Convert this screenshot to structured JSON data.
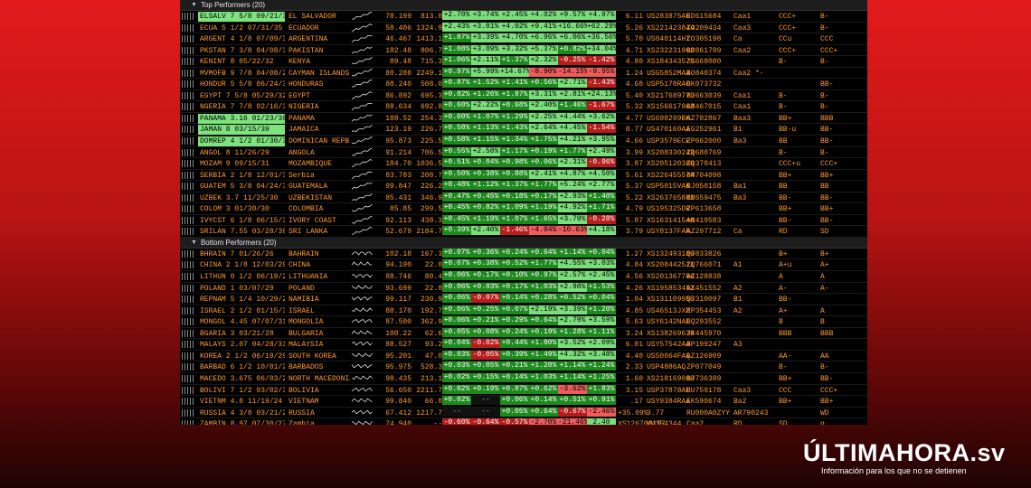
{
  "sections": [
    {
      "title": "Top Performers (20)",
      "rows": [
        [
          "ELSALV 7 5/8 09/21/34",
          "EL SALVADOR",
          "up",
          "78.199",
          "813.0",
          "+2.70%",
          "+3.74%",
          "+2.45%",
          "+4.02%",
          "+9.57%",
          "+4.97%",
          "6.11",
          "US283875AH",
          "ED615684",
          "Caa1",
          "CCC+",
          "B-",
          "g"
        ],
        [
          "ECUA 5 1/2 07/31/35",
          "ECUADOR",
          "up",
          "58.406",
          "1324.9",
          "+2.43%",
          "+3.01%",
          "+4.02%",
          "+9.41%",
          "+16.66%",
          "+62.29%",
          "5.26",
          "XS221423844",
          "ZO209434",
          "Caa3",
          "CCC+",
          "B-",
          ""
        ],
        [
          "ARGENT 4 1/8 07/09/35",
          "ARGENTINA",
          "up",
          "46.467",
          "1413.1",
          "+1.87%",
          "+3.39%",
          "+4.70%",
          "+6.96%",
          "+6.06%",
          "+36.56%",
          "5.70",
          "US040114HT",
          "ZO305198",
          "Ca",
          "CCu",
          "CCC",
          ""
        ],
        [
          "PKSTAN 7 3/8 04/08/31",
          "PAKISTAN",
          "up",
          "182.48",
          "806.7",
          "+1.08%",
          "+3.09%",
          "+3.32%",
          "+5.37%",
          "+0.82%",
          "+34.04%",
          "4.71",
          "XS232231962",
          "BO861799",
          "Caa2",
          "CCC+",
          "CCC+",
          ""
        ],
        [
          "KENINT 8 05/22/32",
          "KENYA",
          "up",
          "89.48",
          "715.3",
          "+1.06%",
          "+2.11%",
          "+1.37%",
          "+2.32%",
          "-0.25%",
          "-1.42%",
          "4.80",
          "XS184343576",
          "ZS668080",
          "",
          "B-",
          "B-",
          ""
        ],
        [
          "MVMOFB 9 7/8 04/08/26",
          "CAYMAN ISLANDS",
          "up",
          "80.288",
          "2249.1",
          "+0.97%",
          "+5.99%",
          "+14.67%",
          "-8.90%",
          "-14.15%",
          "-9.95%",
          "1.24",
          "USG5852MAA",
          "BO840374",
          "Caa2 *-",
          "",
          "",
          ""
        ],
        [
          "HONDUR 5 5/8 06/24/30",
          "HONDURAS",
          "up",
          "88.240",
          "508.0",
          "+0.87%",
          "+1.52%",
          "+1.41%",
          "+0.56%",
          "+2.71%",
          "-1.43%",
          "4.68",
          "USP5178RAC",
          "BK073732",
          "",
          "",
          "BB-",
          ""
        ],
        [
          "EGYPT 7 5/8 05/29/32",
          "EGYPT",
          "up",
          "86.892",
          "695.3",
          "+0.82%",
          "+1.26%",
          "+1.87%",
          "+3.31%",
          "+2.81%",
          "+24.13%",
          "5.40",
          "XS217689775",
          "BJ663039",
          "Caa1",
          "B-",
          "B-",
          ""
        ],
        [
          "NGERIA 7 7/8 02/16/32",
          "NIGERIA",
          "up",
          "88.634",
          "692.8",
          "+0.60%",
          "+2.22%",
          "+0.68%",
          "+2.40%",
          "+1.46%",
          "-1.67%",
          "5.32",
          "XS156617903",
          "AM467015",
          "Caa1",
          "B-",
          "B-",
          ""
        ],
        [
          "PANAMA 3.16 01/23/30",
          "PANAMA",
          "up",
          "188.52",
          "254.3",
          "+0.60%",
          "+1.07%",
          "+1.29%",
          "+2.25%",
          "+4.44%",
          "+3.62%",
          "4.77",
          "US698299BK",
          "AZ702867",
          "Baa3",
          "BB+",
          "BBB",
          "g"
        ],
        [
          "JAMAN 8 03/15/39",
          "JAMAICA",
          "up",
          "123.19",
          "226.7",
          "+0.58%",
          "+1.13%",
          "+1.43%",
          "+2.64%",
          "+4.45%",
          "-1.54%",
          "8.77",
          "US470160AA",
          "EG252961",
          "B1",
          "BB-u",
          "BB-",
          "g"
        ],
        [
          "DOMREP 4 1/2 01/30/30",
          "DOMINICAN REPB.",
          "up",
          "95.873",
          "225.5",
          "+0.58%",
          "+1.15%",
          "+1.34%",
          "+1.75%",
          "+4.21%",
          "+3.95%",
          "4.66",
          "USP3579ECE",
          "ZP662000",
          "Ba3",
          "BB",
          "BB-",
          "g"
        ],
        [
          "ANGOL 8 11/26/29",
          "ANGOLA",
          "up",
          "91.214",
          "706.5",
          "+0.55%",
          "+2.58%",
          "+1.17%",
          "+0.19%",
          "+1.77%",
          "+2.49%",
          "3.99",
          "XS208330243",
          "ZQ680769",
          "",
          "B-",
          "B-",
          ""
        ],
        [
          "MOZAM 9 09/15/31",
          "MOZAMBIQUE",
          "up",
          "184.70",
          "1036.5",
          "+0.51%",
          "+0.04%",
          "+0.98%",
          "+0.06%",
          "+2.31%",
          "-0.96%",
          "3.87",
          "XS205120386",
          "ZQ378413",
          "",
          "CCC+u",
          "CCC+",
          ""
        ],
        [
          "SERBIA 2 1/8 12/01/30",
          "Serbia",
          "up",
          "83.783",
          "208.7",
          "+0.50%",
          "+0.38%",
          "+0.88%",
          "+2.41%",
          "+4.87%",
          "+4.50%",
          "5.61",
          "XS226455574",
          "BM704098",
          "",
          "BB+",
          "BB+",
          ""
        ],
        [
          "GUATEM 5 3/8 04/24/32",
          "GUATEMALA",
          "up",
          "99.847",
          "226.2",
          "+0.48%",
          "+1.12%",
          "+1.37%",
          "+1.77%",
          "+5.24%",
          "+2.77%",
          "5.37",
          "USP5015VAK",
          "BJ050158",
          "Ba1",
          "BB",
          "BB",
          ""
        ],
        [
          "UZBEK 3.7 11/25/30",
          "UZBEKISTAN",
          "up",
          "85.431",
          "346.9",
          "+0.47%",
          "+0.45%",
          "+0.18%",
          "+0.17%",
          "+2.93%",
          "+1.40%",
          "5.22",
          "XS263765881",
          "BM659475",
          "Ba3",
          "BB-",
          "BB-",
          ""
        ],
        [
          "COLOM 3 01/30/30",
          "COLOMBIA",
          "up",
          "85.85",
          "299.5",
          "+0.45%",
          "+0.82%",
          "+1.09%",
          "+1.19%",
          "+4.92%",
          "+1.71%",
          "4.79",
          "US195325DR",
          "ZP613658",
          "",
          "BB+",
          "BB+",
          ""
        ],
        [
          "IVYCST 6 1/8 06/15/33",
          "IVORY COAST",
          "up",
          "92.113",
          "438.3",
          "+0.45%",
          "+1.19%",
          "+1.07%",
          "+1.65%",
          "+3.79%",
          "-0.28%",
          "5.87",
          "XS163141540",
          "AN419583",
          "",
          "BB-",
          "BB-",
          ""
        ],
        [
          "SRILAN 7.55 03/28/30",
          "SRI LANKA",
          "up",
          "52.679",
          "2184.7",
          "+0.39%",
          "+2.40%",
          "-1.46%",
          "-4.94%",
          "-10.63%",
          "+4.18%",
          "3.79",
          "USY8137FAR",
          "AZ297712",
          "Ca",
          "RD",
          "SD",
          ""
        ]
      ]
    },
    {
      "title": "Bottom Performers (20)",
      "rows": [
        [
          "BHRAIN 7 01/26/26",
          "BAHRAIN",
          "flat",
          "102.18",
          "167.3",
          "+0.07%",
          "+0.36%",
          "+0.24%",
          "+0.64%",
          "+1.14%",
          "+0.04%",
          "1.27",
          "XS132493189",
          "QJ833826",
          "",
          "B+",
          "B+",
          ""
        ],
        [
          "CHINA 2 1/8 12/03/29",
          "CHINA",
          "flat",
          "94.190",
          "22.0",
          "+0.07%",
          "+0.38%",
          "+0.52%",
          "+1.77%",
          "+4.55%",
          "+3.03%",
          "4.84",
          "XS208442511",
          "ZQ766071",
          "A1",
          "A+u",
          "A+",
          ""
        ],
        [
          "LITHUN 0 1/2 06/19/29",
          "LITHUANIA",
          "flat",
          "88.746",
          "80.4",
          "+0.06%",
          "+0.17%",
          "+0.10%",
          "+0.97%",
          "+2.57%",
          "+2.45%",
          "4.56",
          "XS201367786",
          "AZ128838",
          "",
          "A",
          "A",
          ""
        ],
        [
          "POLAND 1 03/07/29",
          "POLAND",
          "flat",
          "93.699",
          "22.8",
          "+0.06%",
          "+0.03%",
          "+0.17%",
          "+1.03%",
          "+2.98%",
          "+1.53%",
          "4.26",
          "XS195853452",
          "AX451552",
          "A2",
          "A-",
          "A-",
          ""
        ],
        [
          "REPNAM 5 1/4 10/29/25",
          "NAMIBIA",
          "flat",
          "99.117",
          "230.9",
          "+0.06%",
          "-0.07%",
          "+0.14%",
          "+0.28%",
          "+0.52%",
          "+0.04%",
          "1.04",
          "XS131109955",
          "QJ310097",
          "B1",
          "BB-",
          "",
          ""
        ],
        [
          "ISRAEL 2 1/2 01/15/30",
          "ISRAEL",
          "flat",
          "88.170",
          "192.7",
          "+0.06%",
          "+0.25%",
          "+0.07%",
          "+2.19%",
          "+3.39%",
          "+1.20%",
          "4.85",
          "US46513JXM",
          "ZP354453",
          "A2",
          "A+",
          "A",
          ""
        ],
        [
          "MONGOL 4.45 07/07/31",
          "MONGOLIA",
          "flat",
          "87.500",
          "362.9",
          "+0.06%",
          "+0.21%",
          "+0.29%",
          "+0.64%",
          "+2.79%",
          "+3.59%",
          "5.63",
          "USY6142NAE",
          "BQ293552",
          "",
          "B",
          "B",
          ""
        ],
        [
          "BGARIA 3 03/21/28",
          "BULGARIA",
          "flat",
          "100.22",
          "62.6",
          "+0.05%",
          "+0.08%",
          "+0.24%",
          "+0.19%",
          "+1.28%",
          "+1.11%",
          "3.24",
          "XS138269639",
          "JK445970",
          "",
          "BBB",
          "BBB",
          ""
        ],
        [
          "MALAYS 2.07 04/28/31",
          "MALAYSIA",
          "flat",
          "88.527",
          "93.2",
          "+0.04%",
          "-0.02%",
          "+0.44%",
          "+1.80%",
          "+3.52%",
          "+2.09%",
          "6.01",
          "USY57542AA",
          "BP199247",
          "A3",
          "",
          "",
          ""
        ],
        [
          "KOREA 2 1/2 06/19/29",
          "SOUTH KOREA",
          "flat",
          "95.201",
          "47.0",
          "+0.03%",
          "-0.05%",
          "+0.39%",
          "+1.49%",
          "+4.32%",
          "+3.48%",
          "4.40",
          "US50064FAQ",
          "AZ126909",
          "",
          "AA-",
          "AA",
          ""
        ],
        [
          "BARBAD 6 1/2 10/01/29",
          "BARBADOS",
          "flat",
          "95.975",
          "528.3",
          "+0.03%",
          "+0.05%",
          "+0.21%",
          "+1.20%",
          "+1.14%",
          "+1.24%",
          "2.33",
          "USP4886AQ",
          "ZP077049",
          "",
          "B-",
          "B-",
          ""
        ],
        [
          "MACEDO 3.675 06/03/26",
          "NORTH MACEDONIA",
          "flat",
          "98.435",
          "213.1",
          "+0.02%",
          "+0.15%",
          "+0.14%",
          "+1.03%",
          "+1.14%",
          "+1.25%",
          "1.60",
          "XS218169088",
          "BJ736389",
          "",
          "BB+",
          "BB-",
          ""
        ],
        [
          "BOLIVI 7 1/2 03/02/30",
          "BOLIVIA",
          "flat",
          "56.650",
          "2211.7",
          "+0.02%",
          "+0.19%",
          "+0.87%",
          "+0.62%",
          "-3.62%",
          "+1.83%",
          "3.15",
          "USP37878AE",
          "BU759178",
          "Caa3",
          "CCC",
          "CCC+",
          ""
        ],
        [
          "VIETNM 4.8 11/19/24",
          "VIETNAM",
          "flat",
          "99.840",
          "66.8",
          "+0.02%",
          "--",
          "+0.06%",
          "+0.14%",
          "+0.51%",
          "+0.91%",
          ".17",
          "USY9384RAA",
          "EK590674",
          "Ba2",
          "BB+",
          "BB+",
          ""
        ],
        [
          "RUSSIA 4 3/8 03/21/29",
          "RUSSIA",
          "flat",
          "67.412",
          "1217.7",
          "--",
          "--",
          "+0.05%",
          "+0.64%",
          "-0.67%",
          "-2.46%",
          "+35.09%",
          "3.77",
          "RU000A0ZYY",
          "AR790243",
          "",
          "WD",
          "NR",
          "r"
        ],
        [
          "ZAMBIN 8.97 07/30/27",
          "Zambia",
          "flat",
          "74.940",
          "--",
          "-0.60%",
          "-0.64%",
          "-0.57%",
          "-2.70%",
          "-21.46%",
          "2.40",
          "XS126708157",
          "VV354344",
          "Caa2",
          "RD",
          "SD",
          "g"
        ],
        [
          "BELRUS 6.2 02/28/30",
          "BELARUS",
          "flat",
          "42.013",
          "2427.2",
          "-0.04%",
          "+0.02%",
          "+0.13%",
          "+8.73%",
          "+6.03%",
          "+23.18%",
          "3.95",
          "XS176080418",
          "AR286103",
          "",
          "WD",
          "NR",
          ""
        ],
        [
          "PNGIB 8 3/8 10/04/28",
          "PAPUA N.GUINEA",
          "flat",
          "97.493",
          "595.0",
          "-0.18%",
          "+0.07%",
          "-0.19%",
          "+0.06%",
          "+2.12%",
          "+3.33%",
          "3.23",
          "USY6726SAP",
          "AU719589",
          "",
          "",
          "",
          ""
        ],
        [
          "REPCAM 9 1/2 07/31/31",
          "CAMEROON",
          "flat",
          "96.818",
          "727.3",
          "-0.22%",
          "+0.05%",
          "+0.05%",
          "+0.37%",
          "",
          "",
          "3.68",
          "XS286946933",
          "YW604690",
          "",
          "B",
          "B-",
          ""
        ],
        [
          "SENEGL 6 1/4 05/23/33",
          "SENEGAL",
          "flat",
          "85.028",
          "594.2",
          "-0.97%",
          "-1.33%",
          "-0.35%",
          "-1.97%",
          "+0.48%",
          "-5.19%",
          "5.65",
          "XS161915556",
          "AN633164",
          "",
          "",
          "B+",
          ""
        ]
      ]
    }
  ],
  "brand": {
    "logo": "ÚLTIMAHORA.sv",
    "tagline": "Información para los que no se detienen"
  }
}
